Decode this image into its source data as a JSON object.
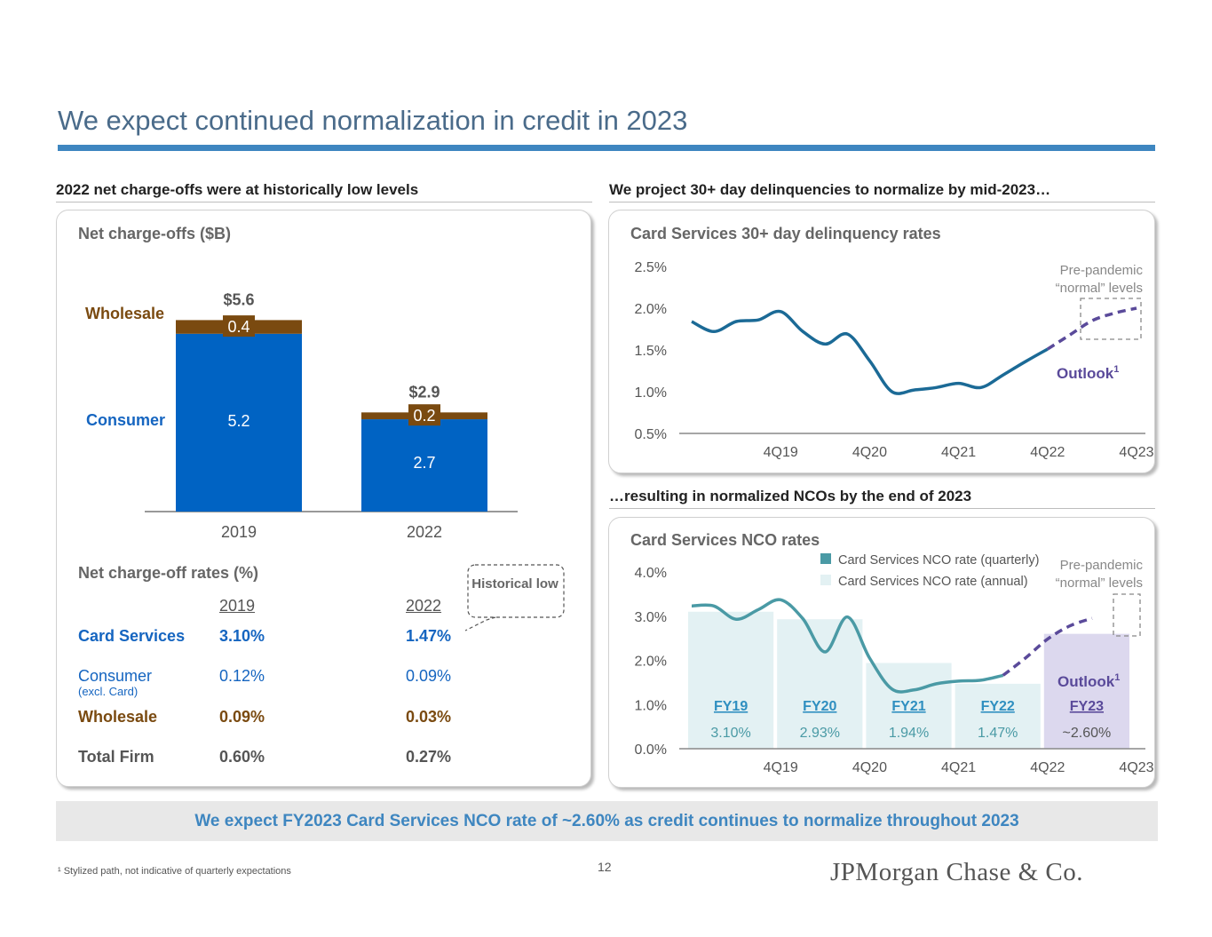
{
  "page": {
    "title": "We expect continued normalization in credit in 2023",
    "banner": "We expect FY2023 Card Services NCO rate of ~2.60% as credit continues to normalize throughout 2023",
    "footnote": "¹ Stylized path, not indicative of quarterly expectations",
    "page_number": "12",
    "logo_text": "JPMorgan Chase & Co.",
    "colors": {
      "consumer": "#0063c3",
      "wholesale": "#7a4a10",
      "line": "#1b6a96",
      "outlook": "#5a4a9a",
      "nco_line": "#4a9aa5",
      "annual_bar": "#e3f1f3",
      "outlook_bar": "#dcd8ee",
      "title_rule": "#3e86c0"
    }
  },
  "left": {
    "section_heading": "2022 net charge-offs were at historically low levels",
    "nco_title": "Net charge-offs ($B)",
    "rates_title": "Net charge-off rates (%)",
    "callout": "Historical low",
    "table": {
      "headers": [
        "2019",
        "2022"
      ],
      "rows": [
        {
          "label": "Card Services",
          "sub": "",
          "v2019": "3.10%",
          "v2022": "1.47%"
        },
        {
          "label": "Consumer",
          "sub": "(excl. Card)",
          "v2019": "0.12%",
          "v2022": "0.09%"
        },
        {
          "label": "Wholesale",
          "sub": "",
          "v2019": "0.09%",
          "v2022": "0.03%"
        },
        {
          "label": "Total Firm",
          "sub": "",
          "v2019": "0.60%",
          "v2022": "0.27%"
        }
      ]
    }
  },
  "right": {
    "section_heading_top": "We project 30+ day delinquencies to normalize by mid-2023…",
    "section_heading_bottom": "…resulting in normalized NCOs by the end of 2023"
  },
  "chart_data": [
    {
      "type": "bar",
      "stacked": true,
      "title": "Net charge-offs ($B)",
      "categories": [
        "2019",
        "2022"
      ],
      "series": [
        {
          "name": "Consumer",
          "values": [
            5.2,
            2.7
          ],
          "labels": [
            "5.2",
            "2.7"
          ]
        },
        {
          "name": "Wholesale",
          "values": [
            0.4,
            0.2
          ],
          "labels": [
            "0.4",
            "0.2"
          ]
        }
      ],
      "totals": [
        "$5.6",
        "$2.9"
      ],
      "ylim": [
        0,
        6.3
      ]
    },
    {
      "type": "line",
      "title": "Card Services 30+ day delinquency rates",
      "y_ticks": [
        "2.5%",
        "2.0%",
        "1.5%",
        "1.0%",
        "0.5%"
      ],
      "x_ticks": [
        "4Q19",
        "4Q20",
        "4Q21",
        "4Q22",
        "4Q23"
      ],
      "ylim": [
        0.5,
        2.5
      ],
      "quarters": [
        "4Q18",
        "1Q19",
        "2Q19",
        "3Q19",
        "4Q19",
        "1Q20",
        "2Q20",
        "3Q20",
        "4Q20",
        "1Q21",
        "2Q21",
        "3Q21",
        "4Q21",
        "1Q22",
        "2Q22",
        "3Q22",
        "4Q22",
        "1Q23",
        "2Q23",
        "3Q23",
        "4Q23"
      ],
      "actual": [
        1.84,
        1.72,
        1.84,
        1.86,
        1.96,
        1.72,
        1.57,
        1.69,
        1.37,
        1.0,
        1.02,
        1.05,
        1.1,
        1.05,
        1.2,
        1.36,
        1.51
      ],
      "outlook": [
        1.51,
        1.68,
        1.85,
        1.94,
        2.0
      ],
      "outlook_label": "Outlook¹",
      "annotation": "Pre-pandemic “normal” levels"
    },
    {
      "type": "bar",
      "title": "Card Services NCO rates",
      "y_ticks": [
        "4.0%",
        "3.0%",
        "2.0%",
        "1.0%",
        "0.0%"
      ],
      "x_ticks": [
        "4Q19",
        "4Q20",
        "4Q21",
        "4Q22",
        "4Q23"
      ],
      "ylim": [
        0,
        4
      ],
      "legend": [
        "Card Services NCO rate (quarterly)",
        "Card Services NCO rate (annual)"
      ],
      "annual": [
        {
          "label": "FY19",
          "value": 3.1,
          "display": "3.10%"
        },
        {
          "label": "FY20",
          "value": 2.93,
          "display": "2.93%"
        },
        {
          "label": "FY21",
          "value": 1.94,
          "display": "1.94%"
        },
        {
          "label": "FY22",
          "value": 1.47,
          "display": "1.47%"
        },
        {
          "label": "FY23",
          "value": 2.6,
          "display": "~2.60%"
        }
      ],
      "quarterly": [
        3.23,
        3.23,
        2.93,
        3.15,
        3.37,
        2.94,
        2.19,
        2.98,
        2.05,
        1.35,
        1.33,
        1.47,
        1.53,
        1.55,
        1.66
      ],
      "outlook": [
        1.66,
        2.05,
        2.48,
        2.78,
        2.95
      ],
      "outlook_label": "Outlook¹",
      "annotation": "Pre-pandemic “normal” levels"
    }
  ]
}
